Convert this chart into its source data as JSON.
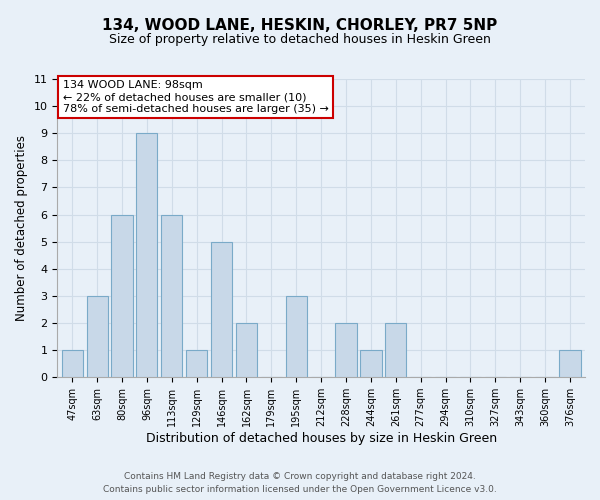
{
  "title": "134, WOOD LANE, HESKIN, CHORLEY, PR7 5NP",
  "subtitle": "Size of property relative to detached houses in Heskin Green",
  "xlabel": "Distribution of detached houses by size in Heskin Green",
  "ylabel": "Number of detached properties",
  "bar_labels": [
    "47sqm",
    "63sqm",
    "80sqm",
    "96sqm",
    "113sqm",
    "129sqm",
    "146sqm",
    "162sqm",
    "179sqm",
    "195sqm",
    "212sqm",
    "228sqm",
    "244sqm",
    "261sqm",
    "277sqm",
    "294sqm",
    "310sqm",
    "327sqm",
    "343sqm",
    "360sqm",
    "376sqm"
  ],
  "bar_values": [
    1,
    3,
    6,
    9,
    6,
    1,
    5,
    2,
    0,
    3,
    0,
    2,
    1,
    2,
    0,
    0,
    0,
    0,
    0,
    0,
    1
  ],
  "bar_color": "#c8d8e8",
  "bar_edge_color": "#7aaac8",
  "annotation_title": "134 WOOD LANE: 98sqm",
  "annotation_line1": "← 22% of detached houses are smaller (10)",
  "annotation_line2": "78% of semi-detached houses are larger (35) →",
  "annotation_box_color": "#ffffff",
  "annotation_box_edge": "#cc0000",
  "ylim": [
    0,
    11
  ],
  "yticks": [
    0,
    1,
    2,
    3,
    4,
    5,
    6,
    7,
    8,
    9,
    10,
    11
  ],
  "grid_color": "#d0dce8",
  "bg_color": "#e8f0f8",
  "footer1": "Contains HM Land Registry data © Crown copyright and database right 2024.",
  "footer2": "Contains public sector information licensed under the Open Government Licence v3.0."
}
